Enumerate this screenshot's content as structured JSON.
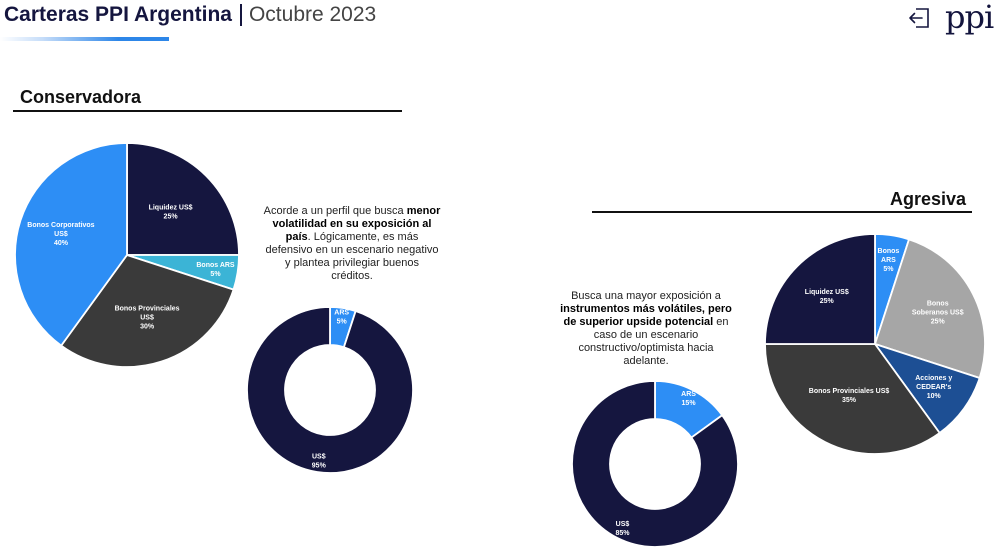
{
  "header": {
    "title": "Carteras PPI Argentina",
    "subtitle": "Octubre 2023",
    "logo": "ppi",
    "exit_icon": "exit-arrow-icon"
  },
  "conservadora": {
    "heading": "Conservadora",
    "description": [
      {
        "text": "Acorde a un perfil que busca ",
        "bold": false
      },
      {
        "text": "menor volatilidad en su exposición al país",
        "bold": true
      },
      {
        "text": ". Lógicamente, es más defensivo en un escenario negativo y plantea privilegiar buenos créditos.",
        "bold": false
      }
    ]
  },
  "agresiva": {
    "heading": "Agresiva",
    "description": [
      {
        "text": "Busca una mayor exposición a ",
        "bold": false
      },
      {
        "text": "instrumentos más volátiles, pero de superior upside potencial",
        "bold": true
      },
      {
        "text": " en caso de un escenario constructivo/optimista hacia adelante.",
        "bold": false
      }
    ]
  },
  "chart_data": [
    {
      "id": "conservadora-pie",
      "type": "pie",
      "title": "",
      "slices": [
        {
          "label": [
            "Liquidez US$",
            "25%"
          ],
          "value": 25,
          "color": "#15163f",
          "text_color": "#ffffff"
        },
        {
          "label": [
            "Bonos ARS",
            "5%"
          ],
          "value": 5,
          "color": "#3bb4d6",
          "text_color": "#ffffff"
        },
        {
          "label": [
            "Bonos Provinciales",
            "US$",
            "30%"
          ],
          "value": 30,
          "color": "#3a3a3a",
          "text_color": "#ffffff"
        },
        {
          "label": [
            "Bonos Corporativos",
            "US$",
            "40%"
          ],
          "value": 40,
          "color": "#2d8ef5",
          "text_color": "#ffffff"
        }
      ]
    },
    {
      "id": "conservadora-donut",
      "type": "pie",
      "title": "",
      "slices": [
        {
          "label": [
            "ARS",
            "5%"
          ],
          "value": 5,
          "color": "#2d8ef5",
          "text_color": "#ffffff"
        },
        {
          "label": [
            "US$",
            "95%"
          ],
          "value": 95,
          "color": "#15163f",
          "text_color": "#ffffff"
        }
      ]
    },
    {
      "id": "agresiva-donut",
      "type": "pie",
      "title": "",
      "slices": [
        {
          "label": [
            "ARS",
            "15%"
          ],
          "value": 15,
          "color": "#2d8ef5",
          "text_color": "#ffffff"
        },
        {
          "label": [
            "US$",
            "85%"
          ],
          "value": 85,
          "color": "#15163f",
          "text_color": "#ffffff"
        }
      ]
    },
    {
      "id": "agresiva-pie",
      "type": "pie",
      "title": "",
      "slices": [
        {
          "label": [
            "Bonos",
            "ARS",
            "5%"
          ],
          "value": 5,
          "color": "#2d8ef5",
          "text_color": "#ffffff"
        },
        {
          "label": [
            "Bonos",
            "Soberanos US$",
            "25%"
          ],
          "value": 25,
          "color": "#a6a6a6",
          "text_color": "#ffffff"
        },
        {
          "label": [
            "Acciones y",
            "CEDEAR's",
            "10%"
          ],
          "value": 10,
          "color": "#1d4f94",
          "text_color": "#ffffff"
        },
        {
          "label": [
            "Bonos Provinciales US$",
            "35%"
          ],
          "value": 35,
          "color": "#3a3a3a",
          "text_color": "#ffffff"
        },
        {
          "label": [
            "Liquidez US$",
            "25%"
          ],
          "value": 25,
          "color": "#15163f",
          "text_color": "#ffffff"
        }
      ]
    }
  ]
}
